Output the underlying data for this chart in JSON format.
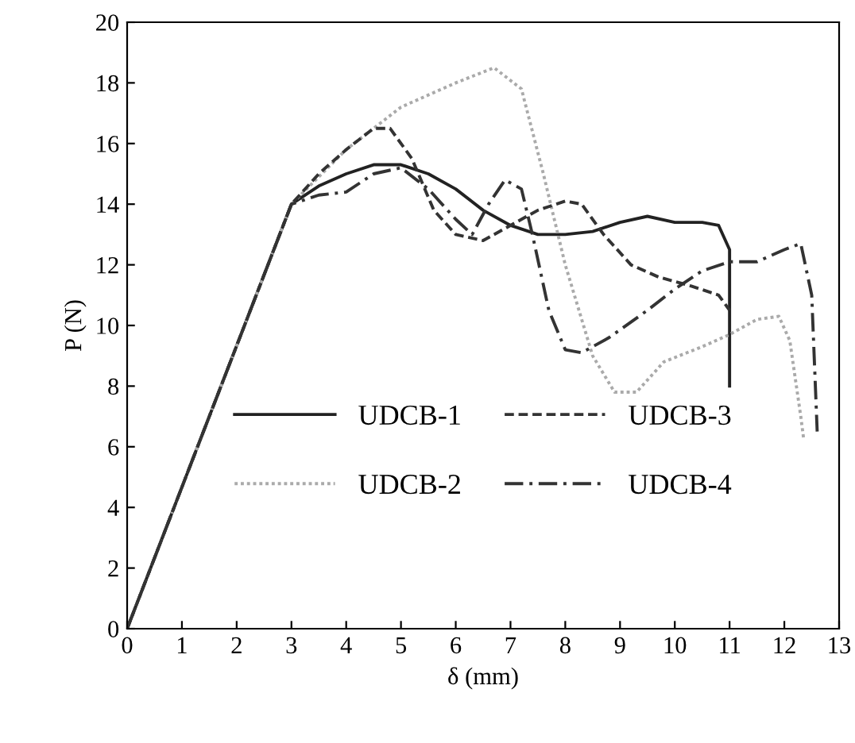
{
  "chart_data": {
    "type": "line",
    "xlabel": "δ (mm)",
    "ylabel": "P (N)",
    "xlim": [
      0,
      13
    ],
    "ylim": [
      0,
      20
    ],
    "xticks": [
      0,
      1,
      2,
      3,
      4,
      5,
      6,
      7,
      8,
      9,
      10,
      11,
      12,
      13
    ],
    "yticks": [
      0,
      2,
      4,
      6,
      8,
      10,
      12,
      14,
      16,
      18,
      20
    ],
    "grid": false,
    "legend": "bottom",
    "marker": "none",
    "series": [
      {
        "name": "UDCB-1",
        "color": "#222222",
        "line_style": "solid",
        "x": [
          0,
          3,
          3.5,
          4,
          4.5,
          5,
          5.5,
          6,
          6.5,
          7,
          7.5,
          8,
          8.5,
          9,
          9.5,
          10,
          10.5,
          10.8,
          11,
          11
        ],
        "values": [
          0,
          14,
          14.6,
          15,
          15.3,
          15.3,
          15,
          14.5,
          13.8,
          13.3,
          13,
          13,
          13.1,
          13.4,
          13.6,
          13.4,
          13.4,
          13.3,
          12.5,
          8
        ]
      },
      {
        "name": "UDCB-2",
        "color": "#aaaaaa",
        "line_style": "dotted",
        "x": [
          0,
          3,
          4,
          5,
          6,
          6.7,
          7.2,
          7.6,
          8,
          8.5,
          8.9,
          9.3,
          9.8,
          10.5,
          11,
          11.5,
          11.9,
          12.1,
          12.3,
          12.35
        ],
        "values": [
          0,
          14,
          15.8,
          17.2,
          18,
          18.5,
          17.8,
          15,
          12,
          9,
          7.8,
          7.8,
          8.8,
          9.3,
          9.7,
          10.2,
          10.3,
          9.5,
          7,
          6.3
        ]
      },
      {
        "name": "UDCB-3",
        "color": "#333333",
        "line_style": "dashed",
        "x": [
          0,
          3,
          3.5,
          4,
          4.5,
          4.8,
          5.2,
          5.6,
          6,
          6.5,
          7,
          7.5,
          8,
          8.3,
          8.7,
          9.2,
          9.7,
          10.3,
          10.8,
          11
        ],
        "values": [
          0,
          14,
          15,
          15.8,
          16.5,
          16.5,
          15.5,
          13.8,
          13,
          12.8,
          13.3,
          13.8,
          14.1,
          14,
          13,
          12,
          11.6,
          11.3,
          11,
          10.5
        ]
      },
      {
        "name": "UDCB-4",
        "color": "#333333",
        "line_style": "dashdot",
        "x": [
          0,
          3,
          3.5,
          4,
          4.5,
          5,
          5.5,
          6,
          6.3,
          6.6,
          6.9,
          7.2,
          7.4,
          7.7,
          8,
          8.3,
          8.8,
          9.5,
          10,
          10.5,
          11,
          11.5,
          12,
          12.3,
          12.5,
          12.6
        ],
        "values": [
          0,
          14,
          14.3,
          14.4,
          15,
          15.2,
          14.5,
          13.5,
          13,
          14,
          14.8,
          14.5,
          13,
          10.5,
          9.2,
          9.1,
          9.6,
          10.5,
          11.2,
          11.8,
          12.1,
          12.1,
          12.5,
          12.7,
          11,
          6.5
        ]
      }
    ]
  }
}
